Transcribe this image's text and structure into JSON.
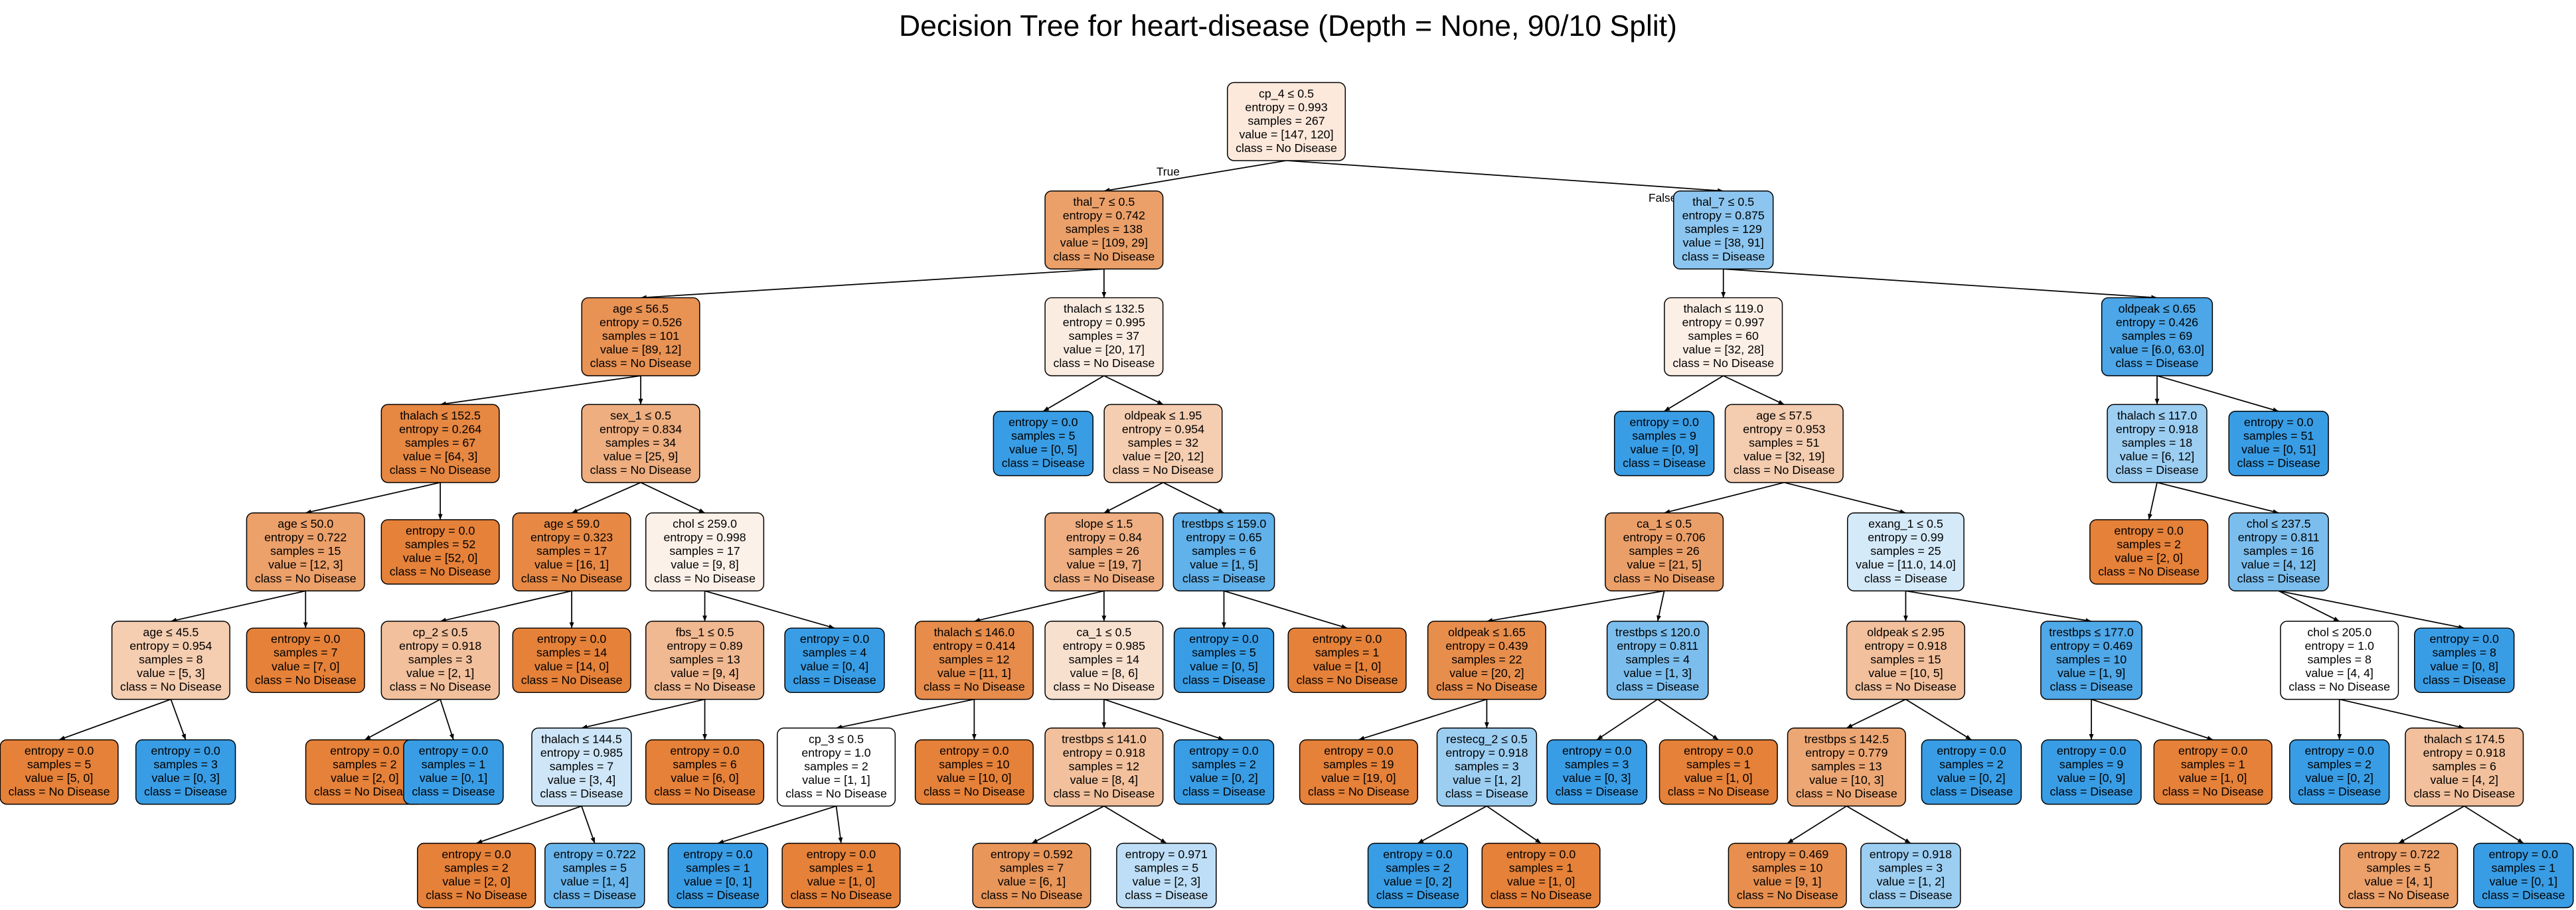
{
  "title": "Decision Tree for heart-disease (Depth = None, 90/10 Split)",
  "edge_labels": [
    "True",
    "False"
  ],
  "nodes": [
    {
      "lines": [
        "cp_4 ≤ 0.5",
        "entropy = 0.993",
        "samples = 267",
        "value = [147, 120]",
        "class = No Disease"
      ],
      "color": "#fce9dc"
    },
    {
      "lines": [
        "thal_7 ≤ 0.5",
        "entropy = 0.742",
        "samples = 138",
        "value = [109, 29]",
        "class = No Disease"
      ],
      "color": "#eba069"
    },
    {
      "lines": [
        "thal_7 ≤ 0.5",
        "entropy = 0.875",
        "samples = 129",
        "value = [38, 91]",
        "class = Disease"
      ],
      "color": "#8cc6f0"
    },
    {
      "lines": [
        "age ≤ 56.5",
        "entropy = 0.526",
        "samples = 101",
        "value = [89, 12]",
        "class = No Disease"
      ],
      "color": "#e89254"
    },
    {
      "lines": [
        "thalach ≤ 132.5",
        "entropy = 0.995",
        "samples = 37",
        "value = [20, 17]",
        "class = No Disease"
      ],
      "color": "#fbece1"
    },
    {
      "lines": [
        "thalach ≤ 119.0",
        "entropy = 0.997",
        "samples = 60",
        "value = [32, 28]",
        "class = No Disease"
      ],
      "color": "#fcefe6"
    },
    {
      "lines": [
        "oldpeak ≤ 0.65",
        "entropy = 0.426",
        "samples = 69",
        "value = [6.0, 63.0]",
        "class = Disease"
      ],
      "color": "#4ca6e7"
    },
    {
      "lines": [
        "thalach ≤ 152.5",
        "entropy = 0.264",
        "samples = 67",
        "value = [64, 3]",
        "class = No Disease"
      ],
      "color": "#e68742"
    },
    {
      "lines": [
        "sex_1 ≤ 0.5",
        "entropy = 0.834",
        "samples = 34",
        "value = [25, 9]",
        "class = No Disease"
      ],
      "color": "#eeae80"
    },
    {
      "lines": [
        "entropy = 0.0",
        "samples = 5",
        "value = [0, 5]",
        "class = Disease"
      ],
      "color": "#399de5"
    },
    {
      "lines": [
        "oldpeak ≤ 1.95",
        "entropy = 0.954",
        "samples = 32",
        "value = [20, 12]",
        "class = No Disease"
      ],
      "color": "#f5cdb0"
    },
    {
      "lines": [
        "entropy = 0.0",
        "samples = 9",
        "value = [0, 9]",
        "class = Disease"
      ],
      "color": "#399de5"
    },
    {
      "lines": [
        "age ≤ 57.5",
        "entropy = 0.953",
        "samples = 51",
        "value = [32, 19]",
        "class = No Disease"
      ],
      "color": "#f4ccaf"
    },
    {
      "lines": [
        "thalach ≤ 117.0",
        "entropy = 0.918",
        "samples = 18",
        "value = [6, 12]",
        "class = Disease"
      ],
      "color": "#9ccef2"
    },
    {
      "lines": [
        "entropy = 0.0",
        "samples = 51",
        "value = [0, 51]",
        "class = Disease"
      ],
      "color": "#399de5"
    },
    {
      "lines": [
        "age ≤ 50.0",
        "entropy = 0.722",
        "samples = 15",
        "value = [12, 3]",
        "class = No Disease"
      ],
      "color": "#eca06a"
    },
    {
      "lines": [
        "entropy = 0.0",
        "samples = 52",
        "value = [52, 0]",
        "class = No Disease"
      ],
      "color": "#e58139"
    },
    {
      "lines": [
        "age ≤ 59.0",
        "entropy = 0.323",
        "samples = 17",
        "value = [16, 1]",
        "class = No Disease"
      ],
      "color": "#e78945"
    },
    {
      "lines": [
        "chol ≤ 259.0",
        "entropy = 0.998",
        "samples = 17",
        "value = [9, 8]",
        "class = No Disease"
      ],
      "color": "#fcf1e9"
    },
    {
      "lines": [
        "slope ≤ 1.5",
        "entropy = 0.84",
        "samples = 26",
        "value = [19, 7]",
        "class = No Disease"
      ],
      "color": "#efaf82"
    },
    {
      "lines": [
        "trestbps ≤ 159.0",
        "entropy = 0.65",
        "samples = 6",
        "value = [1, 5]",
        "class = Disease"
      ],
      "color": "#61b1ea"
    },
    {
      "lines": [
        "ca_1 ≤ 0.5",
        "entropy = 0.706",
        "samples = 26",
        "value = [21, 5]",
        "class = No Disease"
      ],
      "color": "#eb9f68"
    },
    {
      "lines": [
        "exang_1 ≤ 0.5",
        "entropy = 0.99",
        "samples = 25",
        "value = [11.0, 14.0]",
        "class = Disease"
      ],
      "color": "#d5eaf9"
    },
    {
      "lines": [
        "entropy = 0.0",
        "samples = 2",
        "value = [2, 0]",
        "class = No Disease"
      ],
      "color": "#e58139"
    },
    {
      "lines": [
        "chol ≤ 237.5",
        "entropy = 0.811",
        "samples = 16",
        "value = [4, 12]",
        "class = Disease"
      ],
      "color": "#7bbeee"
    },
    {
      "lines": [
        "age ≤ 45.5",
        "entropy = 0.954",
        "samples = 8",
        "value = [5, 3]",
        "class = No Disease"
      ],
      "color": "#f5cdb0"
    },
    {
      "lines": [
        "entropy = 0.0",
        "samples = 7",
        "value = [7, 0]",
        "class = No Disease"
      ],
      "color": "#e58139"
    },
    {
      "lines": [
        "cp_2 ≤ 0.5",
        "entropy = 0.918",
        "samples = 3",
        "value = [2, 1]",
        "class = No Disease"
      ],
      "color": "#f2c09c"
    },
    {
      "lines": [
        "entropy = 0.0",
        "samples = 14",
        "value = [14, 0]",
        "class = No Disease"
      ],
      "color": "#e58139"
    },
    {
      "lines": [
        "fbs_1 ≤ 0.5",
        "entropy = 0.89",
        "samples = 13",
        "value = [9, 4]",
        "class = No Disease"
      ],
      "color": "#f1b991"
    },
    {
      "lines": [
        "entropy = 0.0",
        "samples = 4",
        "value = [0, 4]",
        "class = Disease"
      ],
      "color": "#399de5"
    },
    {
      "lines": [
        "thalach ≤ 146.0",
        "entropy = 0.414",
        "samples = 12",
        "value = [11, 1]",
        "class = No Disease"
      ],
      "color": "#e78c4b"
    },
    {
      "lines": [
        "ca_1 ≤ 0.5",
        "entropy = 0.985",
        "samples = 14",
        "value = [8, 6]",
        "class = No Disease"
      ],
      "color": "#f8e0ce"
    },
    {
      "lines": [
        "entropy = 0.0",
        "samples = 5",
        "value = [0, 5]",
        "class = Disease"
      ],
      "color": "#399de5"
    },
    {
      "lines": [
        "entropy = 0.0",
        "samples = 1",
        "value = [1, 0]",
        "class = No Disease"
      ],
      "color": "#e58139"
    },
    {
      "lines": [
        "oldpeak ≤ 1.65",
        "entropy = 0.439",
        "samples = 22",
        "value = [20, 2]",
        "class = No Disease"
      ],
      "color": "#e88e4d"
    },
    {
      "lines": [
        "trestbps ≤ 120.0",
        "entropy = 0.811",
        "samples = 4",
        "value = [1, 3]",
        "class = Disease"
      ],
      "color": "#7bbeee"
    },
    {
      "lines": [
        "oldpeak ≤ 2.95",
        "entropy = 0.918",
        "samples = 15",
        "value = [10, 5]",
        "class = No Disease"
      ],
      "color": "#f2c09c"
    },
    {
      "lines": [
        "trestbps ≤ 177.0",
        "entropy = 0.469",
        "samples = 10",
        "value = [1, 9]",
        "class = Disease"
      ],
      "color": "#4fa8e8"
    },
    {
      "lines": [
        "chol ≤ 205.0",
        "entropy = 1.0",
        "samples = 8",
        "value = [4, 4]",
        "class = No Disease"
      ],
      "color": "#ffffff"
    },
    {
      "lines": [
        "entropy = 0.0",
        "samples = 8",
        "value = [0, 8]",
        "class = Disease"
      ],
      "color": "#399de5"
    },
    {
      "lines": [
        "entropy = 0.0",
        "samples = 5",
        "value = [5, 0]",
        "class = No Disease"
      ],
      "color": "#e58139"
    },
    {
      "lines": [
        "entropy = 0.0",
        "samples = 3",
        "value = [0, 3]",
        "class = Disease"
      ],
      "color": "#399de5"
    },
    {
      "lines": [
        "entropy = 0.0",
        "samples = 2",
        "value = [2, 0]",
        "class = No Disease"
      ],
      "color": "#e58139"
    },
    {
      "lines": [
        "entropy = 0.0",
        "samples = 1",
        "value = [0, 1]",
        "class = Disease"
      ],
      "color": "#399de5"
    },
    {
      "lines": [
        "thalach ≤ 144.5",
        "entropy = 0.985",
        "samples = 7",
        "value = [3, 4]",
        "class = Disease"
      ],
      "color": "#cee6f8"
    },
    {
      "lines": [
        "entropy = 0.0",
        "samples = 6",
        "value = [6, 0]",
        "class = No Disease"
      ],
      "color": "#e58139"
    },
    {
      "lines": [
        "cp_3 ≤ 0.5",
        "entropy = 1.0",
        "samples = 2",
        "value = [1, 1]",
        "class = No Disease"
      ],
      "color": "#ffffff"
    },
    {
      "lines": [
        "entropy = 0.0",
        "samples = 10",
        "value = [10, 0]",
        "class = No Disease"
      ],
      "color": "#e58139"
    },
    {
      "lines": [
        "trestbps ≤ 141.0",
        "entropy = 0.918",
        "samples = 12",
        "value = [8, 4]",
        "class = No Disease"
      ],
      "color": "#f2c09c"
    },
    {
      "lines": [
        "entropy = 0.0",
        "samples = 2",
        "value = [0, 2]",
        "class = Disease"
      ],
      "color": "#399de5"
    },
    {
      "lines": [
        "entropy = 0.0",
        "samples = 19",
        "value = [19, 0]",
        "class = No Disease"
      ],
      "color": "#e58139"
    },
    {
      "lines": [
        "restecg_2 ≤ 0.5",
        "entropy = 0.918",
        "samples = 3",
        "value = [1, 2]",
        "class = Disease"
      ],
      "color": "#9ccef2"
    },
    {
      "lines": [
        "entropy = 0.0",
        "samples = 3",
        "value = [0, 3]",
        "class = Disease"
      ],
      "color": "#399de5"
    },
    {
      "lines": [
        "entropy = 0.0",
        "samples = 1",
        "value = [1, 0]",
        "class = No Disease"
      ],
      "color": "#e58139"
    },
    {
      "lines": [
        "trestbps ≤ 142.5",
        "entropy = 0.779",
        "samples = 13",
        "value = [10, 3]",
        "class = No Disease"
      ],
      "color": "#eda774"
    },
    {
      "lines": [
        "entropy = 0.0",
        "samples = 2",
        "value = [0, 2]",
        "class = Disease"
      ],
      "color": "#399de5"
    },
    {
      "lines": [
        "entropy = 0.0",
        "samples = 9",
        "value = [0, 9]",
        "class = Disease"
      ],
      "color": "#399de5"
    },
    {
      "lines": [
        "entropy = 0.0",
        "samples = 1",
        "value = [1, 0]",
        "class = No Disease"
      ],
      "color": "#e58139"
    },
    {
      "lines": [
        "entropy = 0.0",
        "samples = 2",
        "value = [0, 2]",
        "class = Disease"
      ],
      "color": "#399de5"
    },
    {
      "lines": [
        "thalach ≤ 174.5",
        "entropy = 0.918",
        "samples = 6",
        "value = [4, 2]",
        "class = No Disease"
      ],
      "color": "#f2c09c"
    },
    {
      "lines": [
        "entropy = 0.0",
        "samples = 2",
        "value = [2, 0]",
        "class = No Disease"
      ],
      "color": "#e58139"
    },
    {
      "lines": [
        "entropy = 0.722",
        "samples = 5",
        "value = [1, 4]",
        "class = Disease"
      ],
      "color": "#6ab6ec"
    },
    {
      "lines": [
        "entropy = 0.0",
        "samples = 1",
        "value = [0, 1]",
        "class = Disease"
      ],
      "color": "#399de5"
    },
    {
      "lines": [
        "entropy = 0.0",
        "samples = 1",
        "value = [1, 0]",
        "class = No Disease"
      ],
      "color": "#e58139"
    },
    {
      "lines": [
        "entropy = 0.592",
        "samples = 7",
        "value = [6, 1]",
        "class = No Disease"
      ],
      "color": "#e9965a"
    },
    {
      "lines": [
        "entropy = 0.971",
        "samples = 5",
        "value = [2, 3]",
        "class = Disease"
      ],
      "color": "#bddef6"
    },
    {
      "lines": [
        "entropy = 0.0",
        "samples = 2",
        "value = [0, 2]",
        "class = Disease"
      ],
      "color": "#399de5"
    },
    {
      "lines": [
        "entropy = 0.0",
        "samples = 1",
        "value = [1, 0]",
        "class = No Disease"
      ],
      "color": "#e58139"
    },
    {
      "lines": [
        "entropy = 0.469",
        "samples = 10",
        "value = [9, 1]",
        "class = No Disease"
      ],
      "color": "#e88f4f"
    },
    {
      "lines": [
        "entropy = 0.918",
        "samples = 3",
        "value = [1, 2]",
        "class = Disease"
      ],
      "color": "#9ccef2"
    },
    {
      "lines": [
        "entropy = 0.722",
        "samples = 5",
        "value = [4, 1]",
        "class = No Disease"
      ],
      "color": "#eca06a"
    },
    {
      "lines": [
        "entropy = 0.0",
        "samples = 1",
        "value = [0, 1]",
        "class = Disease"
      ],
      "color": "#399de5"
    }
  ],
  "edges": [
    [
      0,
      1
    ],
    [
      0,
      2
    ],
    [
      1,
      3
    ],
    [
      1,
      4
    ],
    [
      2,
      5
    ],
    [
      2,
      6
    ],
    [
      3,
      7
    ],
    [
      3,
      8
    ],
    [
      4,
      9
    ],
    [
      4,
      10
    ],
    [
      5,
      11
    ],
    [
      5,
      12
    ],
    [
      6,
      13
    ],
    [
      6,
      14
    ],
    [
      7,
      15
    ],
    [
      7,
      16
    ],
    [
      8,
      17
    ],
    [
      8,
      18
    ],
    [
      10,
      19
    ],
    [
      10,
      20
    ],
    [
      12,
      21
    ],
    [
      12,
      22
    ],
    [
      13,
      23
    ],
    [
      13,
      24
    ],
    [
      15,
      25
    ],
    [
      15,
      26
    ],
    [
      17,
      27
    ],
    [
      17,
      28
    ],
    [
      18,
      29
    ],
    [
      18,
      30
    ],
    [
      19,
      31
    ],
    [
      19,
      32
    ],
    [
      20,
      33
    ],
    [
      20,
      34
    ],
    [
      21,
      35
    ],
    [
      21,
      36
    ],
    [
      22,
      37
    ],
    [
      22,
      38
    ],
    [
      24,
      39
    ],
    [
      24,
      40
    ],
    [
      25,
      41
    ],
    [
      25,
      42
    ],
    [
      27,
      43
    ],
    [
      27,
      44
    ],
    [
      29,
      45
    ],
    [
      29,
      46
    ],
    [
      31,
      47
    ],
    [
      31,
      48
    ],
    [
      32,
      49
    ],
    [
      32,
      50
    ],
    [
      35,
      51
    ],
    [
      35,
      52
    ],
    [
      36,
      53
    ],
    [
      36,
      54
    ],
    [
      37,
      55
    ],
    [
      37,
      56
    ],
    [
      38,
      57
    ],
    [
      38,
      58
    ],
    [
      39,
      59
    ],
    [
      39,
      60
    ],
    [
      45,
      61
    ],
    [
      45,
      62
    ],
    [
      47,
      63
    ],
    [
      47,
      64
    ],
    [
      49,
      65
    ],
    [
      49,
      66
    ],
    [
      52,
      67
    ],
    [
      52,
      68
    ],
    [
      55,
      69
    ],
    [
      55,
      70
    ],
    [
      60,
      71
    ],
    [
      60,
      72
    ]
  ]
}
